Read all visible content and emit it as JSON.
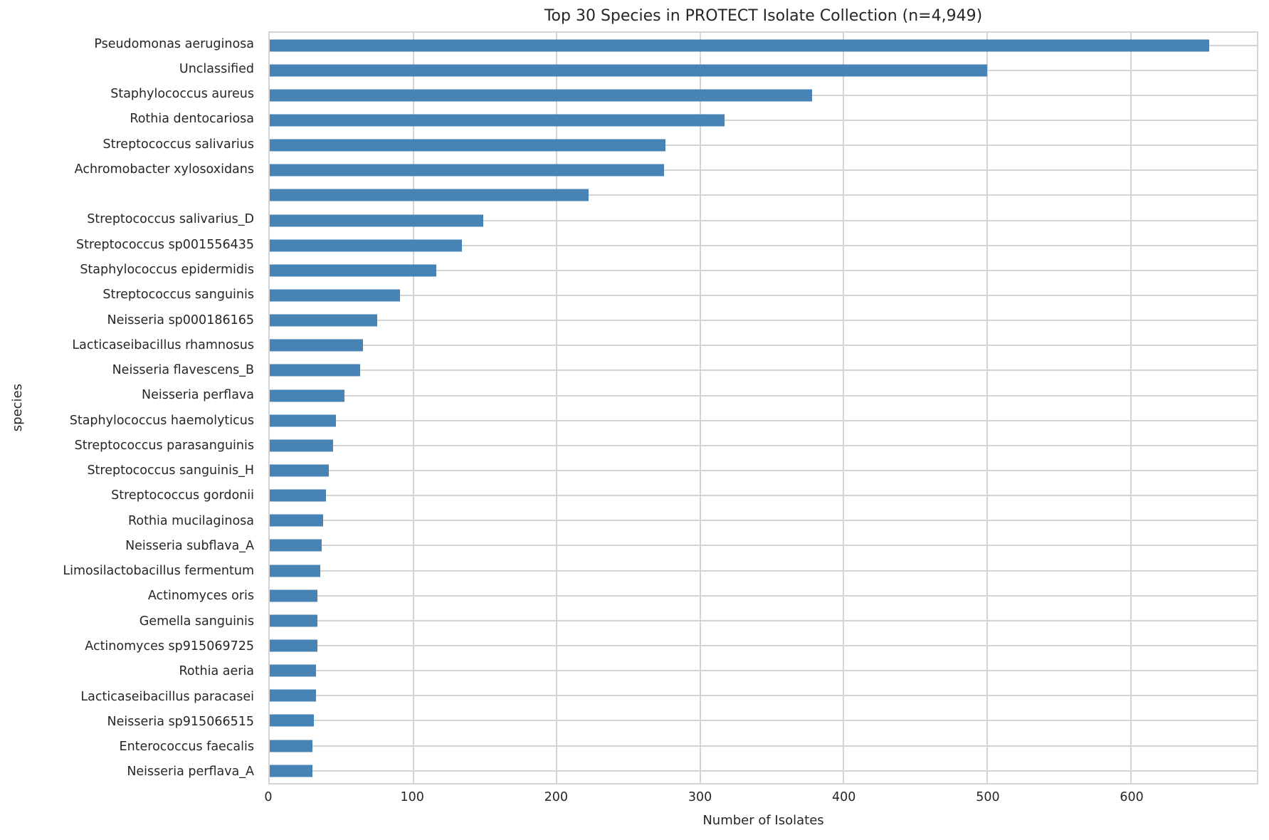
{
  "title": "Top 30 Species in PROTECT Isolate Collection (n=4,949)",
  "chart_data": {
    "type": "bar",
    "orientation": "horizontal",
    "title": "Top 30 Species in PROTECT Isolate Collection (n=4,949)",
    "xlabel": "Number of Isolates",
    "ylabel": "species",
    "xlim": [
      0,
      688
    ],
    "xticks": [
      0,
      100,
      200,
      300,
      400,
      500,
      600
    ],
    "grid": true,
    "legend": "none",
    "bar_color": "#4783b5",
    "grid_color": "#d4d4d4",
    "text_color": "#262626",
    "categories": [
      "Pseudomonas aeruginosa",
      "Unclassified",
      "Staphylococcus aureus",
      "Rothia dentocariosa",
      "Streptococcus salivarius",
      "Achromobacter xylosoxidans",
      "",
      "Streptococcus salivarius_D",
      "Streptococcus sp001556435",
      "Staphylococcus epidermidis",
      "Streptococcus sanguinis",
      "Neisseria sp000186165",
      "Lacticaseibacillus rhamnosus",
      "Neisseria flavescens_B",
      "Neisseria perflava",
      "Staphylococcus haemolyticus",
      "Streptococcus parasanguinis",
      "Streptococcus sanguinis_H",
      "Streptococcus gordonii",
      "Rothia mucilaginosa",
      "Neisseria subflava_A",
      "Limosilactobacillus fermentum",
      "Actinomyces oris",
      "Gemella sanguinis",
      "Actinomyces sp915069725",
      "Rothia aeria",
      "Lacticaseibacillus paracasei",
      "Neisseria sp915066515",
      "Enterococcus faecalis",
      "Neisseria perflava_A"
    ],
    "values": [
      655,
      500,
      378,
      317,
      276,
      275,
      222,
      149,
      134,
      116,
      91,
      75,
      65,
      63,
      52,
      46,
      44,
      41,
      39,
      37,
      36,
      35,
      33,
      33,
      33,
      32,
      32,
      31,
      30,
      30
    ]
  }
}
